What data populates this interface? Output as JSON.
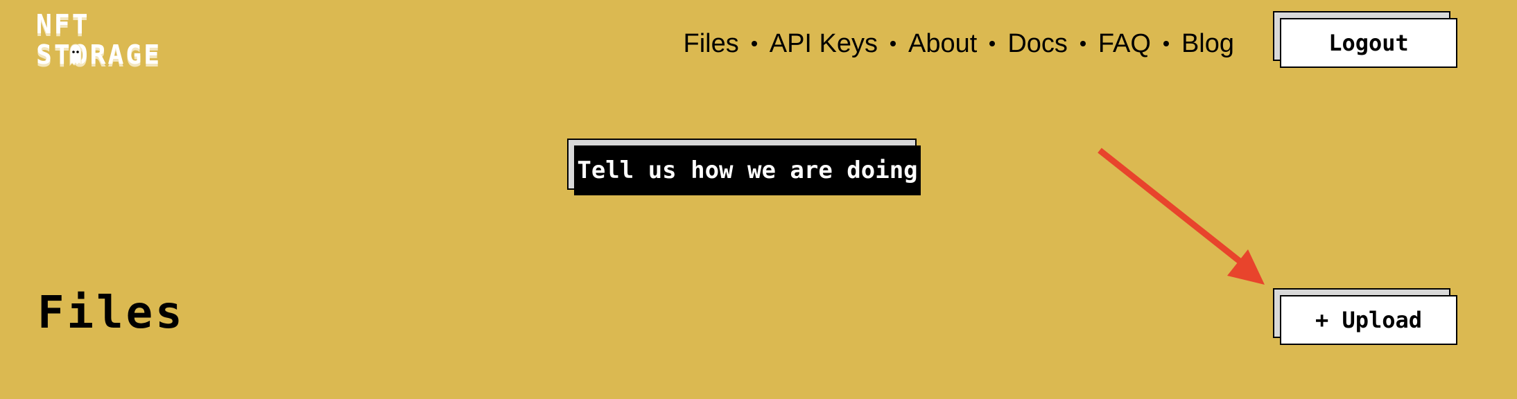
{
  "logo": {
    "line1": "NFT",
    "line2": "STORAGE"
  },
  "nav": {
    "items": [
      {
        "label": "Files"
      },
      {
        "label": "API Keys"
      },
      {
        "label": "About"
      },
      {
        "label": "Docs"
      },
      {
        "label": "FAQ"
      },
      {
        "label": "Blog"
      }
    ]
  },
  "header": {
    "logout_label": "Logout"
  },
  "feedback": {
    "label": "Tell us how we are doing"
  },
  "main": {
    "title": "Files",
    "upload_label": "+ Upload"
  },
  "colors": {
    "background": "#DBB951",
    "arrow": "#E8442C",
    "button_bg": "#FFFFFF",
    "button_shadow": "#D9D9D9",
    "feedback_bg": "#000000"
  },
  "icons": {
    "logo_mascot": "ghost-icon",
    "annotation": "arrow-icon"
  }
}
